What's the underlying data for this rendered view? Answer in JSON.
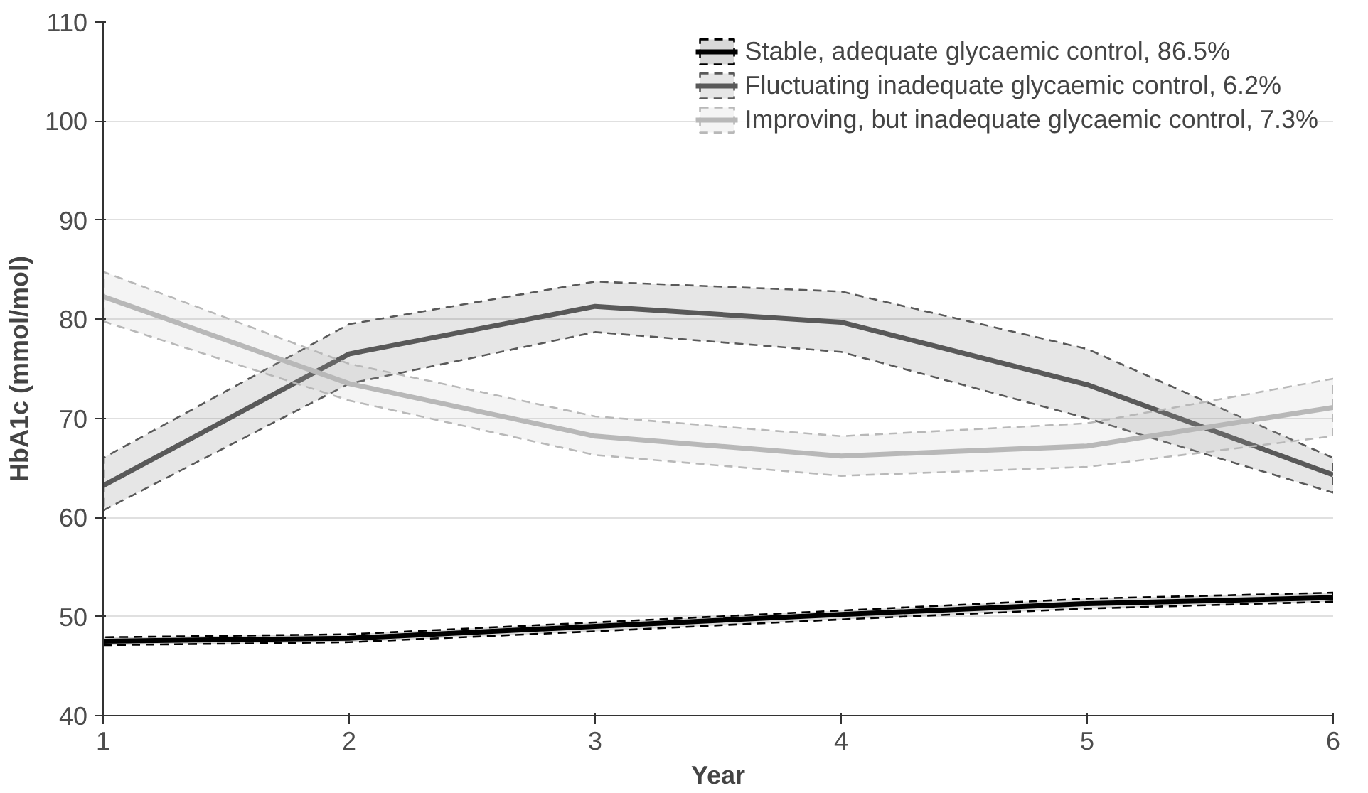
{
  "chart_data": {
    "type": "line",
    "xlabel": "Year",
    "ylabel": "HbA1c (mmol/mol)",
    "x": [
      1,
      2,
      3,
      4,
      5,
      6
    ],
    "xlim": [
      1,
      6
    ],
    "xticks": [
      1,
      2,
      3,
      4,
      5,
      6
    ],
    "ylim": [
      40,
      110
    ],
    "yticks": [
      40,
      50,
      60,
      70,
      80,
      90,
      100,
      110
    ],
    "grid": "y",
    "legend": "top right",
    "series": [
      {
        "name": "Stable, adequate glycaemic control, 86.5%",
        "color": "#000000",
        "values": [
          47.5,
          47.8,
          49.0,
          50.2,
          51.3,
          51.9
        ],
        "lower": [
          47.1,
          47.4,
          48.5,
          49.7,
          50.8,
          51.5
        ],
        "upper": [
          47.9,
          48.2,
          49.4,
          50.6,
          51.8,
          52.4
        ]
      },
      {
        "name": "Fluctuating inadequate glycaemic control, 6.2%",
        "color": "#595959",
        "values": [
          63.2,
          76.5,
          81.3,
          79.7,
          73.4,
          64.3
        ],
        "lower": [
          60.7,
          73.5,
          78.7,
          76.7,
          70.0,
          62.5
        ],
        "upper": [
          66.0,
          79.5,
          83.8,
          82.8,
          77.0,
          66.0
        ]
      },
      {
        "name": "Improving, but inadequate glycaemic control, 7.3%",
        "color": "#b8b8b8",
        "values": [
          82.3,
          73.5,
          68.2,
          66.2,
          67.2,
          71.1
        ],
        "lower": [
          79.8,
          71.8,
          66.3,
          64.2,
          65.1,
          68.2
        ],
        "upper": [
          84.8,
          75.5,
          70.2,
          68.2,
          69.5,
          74.0
        ]
      }
    ]
  }
}
